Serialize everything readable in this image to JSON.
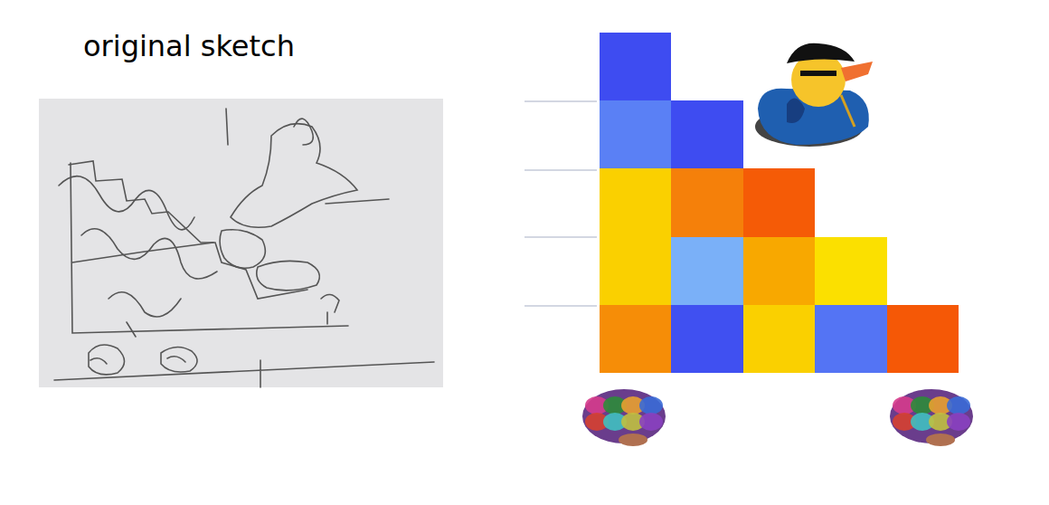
{
  "sketch": {
    "label": "original sketch"
  },
  "chart_data": {
    "type": "heatmap",
    "cells": [
      [
        0.02,
        null,
        null,
        null,
        null
      ],
      [
        0.15,
        0.02,
        null,
        null,
        null
      ],
      [
        0.6,
        0.82,
        0.95,
        null,
        null
      ],
      [
        0.6,
        0.33,
        0.7,
        0.56,
        null
      ],
      [
        0.78,
        0.03,
        0.6,
        0.12,
        0.96
      ]
    ],
    "zlim": [
      0,
      1
    ],
    "xlim": [
      -0.5,
      4.5
    ],
    "ylim": [
      4.5,
      -0.5
    ],
    "tick_labels": false,
    "grid": false
  }
}
